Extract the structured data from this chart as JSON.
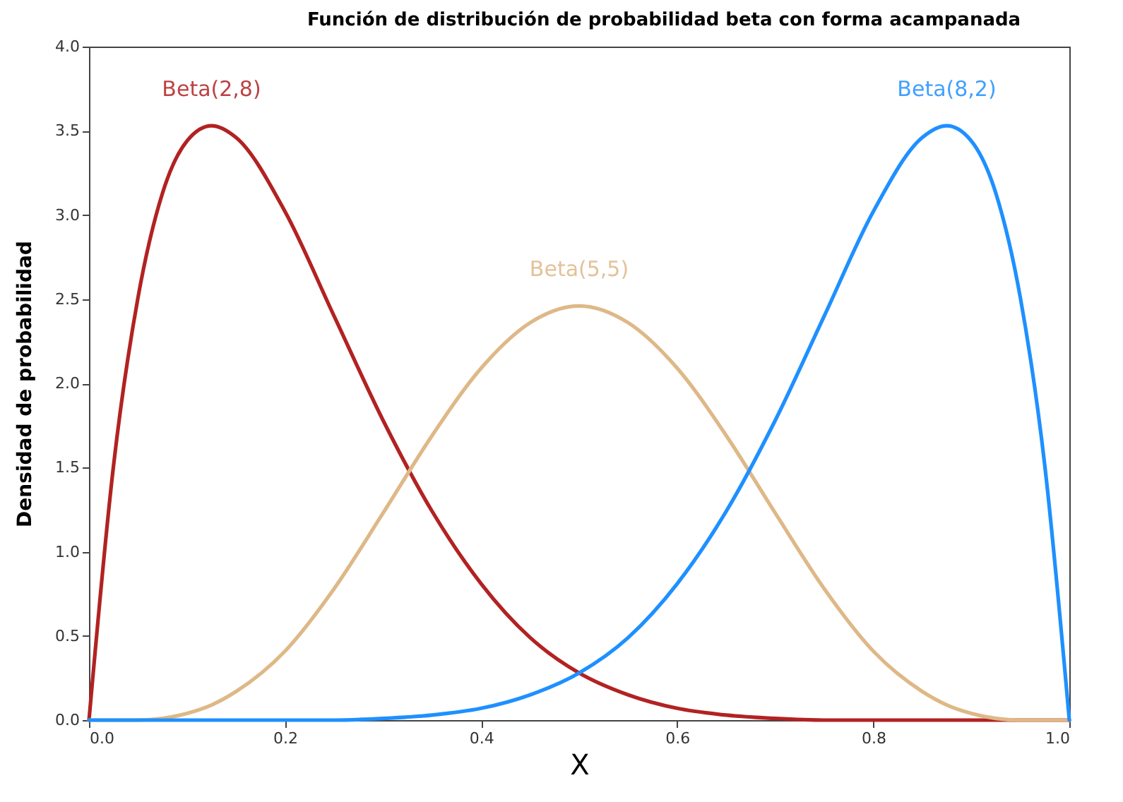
{
  "chart_data": {
    "type": "line",
    "title": "Función de distribución de probabilidad beta con forma acampanada",
    "xlabel": "X",
    "ylabel": "Densidad de probabilidad",
    "x": [
      0,
      0.025,
      0.05,
      0.075,
      0.1,
      0.125,
      0.15,
      0.2,
      0.25,
      0.3,
      0.35,
      0.4,
      0.45,
      0.5,
      0.55,
      0.6,
      0.65,
      0.7,
      0.75,
      0.8,
      0.85,
      0.875,
      0.9,
      0.925,
      0.95,
      0.975,
      1
    ],
    "series": [
      {
        "name": "Beta(2,8)",
        "color": "#b22222",
        "values": [
          0,
          1.51,
          2.51,
          3.13,
          3.44,
          3.53,
          3.46,
          3.02,
          2.4,
          1.78,
          1.24,
          0.81,
          0.49,
          0.28,
          0.15,
          0.07,
          0.03,
          0.01,
          0,
          0,
          0,
          0,
          0,
          0,
          0,
          0,
          0
        ]
      },
      {
        "name": "Beta(5,5)",
        "color": "#deb887",
        "values": [
          0,
          0,
          0,
          0.01,
          0.04,
          0.09,
          0.17,
          0.41,
          0.78,
          1.23,
          1.69,
          2.09,
          2.36,
          2.46,
          2.36,
          2.09,
          1.69,
          1.23,
          0.78,
          0.41,
          0.17,
          0.09,
          0.04,
          0.01,
          0,
          0,
          0
        ]
      },
      {
        "name": "Beta(8,2)",
        "color": "#1e90ff",
        "values": [
          0,
          0,
          0,
          0,
          0,
          0,
          0,
          0,
          0,
          0.01,
          0.03,
          0.07,
          0.15,
          0.28,
          0.49,
          0.81,
          1.24,
          1.78,
          2.4,
          3.02,
          3.46,
          3.53,
          3.44,
          3.13,
          2.51,
          1.51,
          0
        ]
      }
    ],
    "xlim": [
      0,
      1
    ],
    "ylim": [
      0,
      4
    ],
    "xticks": [
      {
        "value": 0,
        "label": "0.0"
      },
      {
        "value": 0.2,
        "label": "0.2"
      },
      {
        "value": 0.4,
        "label": "0.4"
      },
      {
        "value": 0.6,
        "label": "0.6"
      },
      {
        "value": 0.8,
        "label": "0.8"
      },
      {
        "value": 1,
        "label": "1.0"
      }
    ],
    "yticks": [
      {
        "value": 0,
        "label": "0.0"
      },
      {
        "value": 0.5,
        "label": "0.5"
      },
      {
        "value": 1,
        "label": "1.0"
      },
      {
        "value": 1.5,
        "label": "1.5"
      },
      {
        "value": 2,
        "label": "2.0"
      },
      {
        "value": 2.5,
        "label": "2.5"
      },
      {
        "value": 3,
        "label": "3.0"
      },
      {
        "value": 3.5,
        "label": "3.5"
      },
      {
        "value": 4,
        "label": "4.0"
      }
    ],
    "legend": false,
    "grid": false,
    "marker": "none",
    "line_style": "solid"
  }
}
